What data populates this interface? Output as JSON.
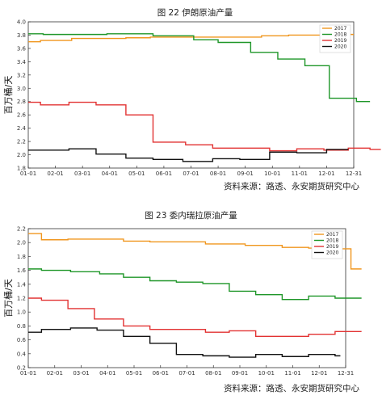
{
  "chart_data": [
    {
      "type": "line",
      "title": "图 22  伊朗原油产量",
      "ylabel": "百万桶/天",
      "source": "资料来源：路透、永安期货研究中心",
      "ylim": [
        1.8,
        4.0
      ],
      "yticks": [
        "1.8",
        "2.0",
        "2.2",
        "2.4",
        "2.6",
        "2.8",
        "3.0",
        "3.2",
        "3.4",
        "3.6",
        "3.8",
        "4.0"
      ],
      "xticks": [
        "01-01",
        "02-01",
        "03-01",
        "04-01",
        "05-01",
        "06-01",
        "07-01",
        "08-01",
        "09-01",
        "10-01",
        "11-01",
        "12-01",
        "12-31"
      ],
      "legend_position": "top-right",
      "series": [
        {
          "name": "2017",
          "color": "#f0961e",
          "points": [
            [
              0,
              3.7
            ],
            [
              0.45,
              3.7
            ],
            [
              0.45,
              3.72
            ],
            [
              1.6,
              3.72
            ],
            [
              1.6,
              3.75
            ],
            [
              3.6,
              3.75
            ],
            [
              3.6,
              3.76
            ],
            [
              4.5,
              3.76
            ],
            [
              4.5,
              3.77
            ],
            [
              8.6,
              3.77
            ],
            [
              8.6,
              3.79
            ],
            [
              9.6,
              3.79
            ],
            [
              9.6,
              3.8
            ],
            [
              11.2,
              3.8
            ],
            [
              11.2,
              3.81
            ],
            [
              12.0,
              3.81
            ]
          ]
        },
        {
          "name": "2018",
          "color": "#1e9628",
          "points": [
            [
              0,
              3.82
            ],
            [
              0.55,
              3.82
            ],
            [
              0.55,
              3.81
            ],
            [
              2.9,
              3.81
            ],
            [
              2.9,
              3.82
            ],
            [
              4.6,
              3.82
            ],
            [
              4.6,
              3.79
            ],
            [
              6.1,
              3.79
            ],
            [
              6.1,
              3.73
            ],
            [
              7.0,
              3.73
            ],
            [
              7.0,
              3.69
            ],
            [
              8.2,
              3.69
            ],
            [
              8.2,
              3.54
            ],
            [
              9.2,
              3.54
            ],
            [
              9.2,
              3.44
            ],
            [
              10.2,
              3.44
            ],
            [
              10.2,
              3.34
            ],
            [
              11.1,
              3.34
            ],
            [
              11.1,
              2.85
            ],
            [
              12.1,
              2.85
            ],
            [
              12.1,
              2.8
            ],
            [
              12.6,
              2.8
            ]
          ]
        },
        {
          "name": "2019",
          "color": "#e23232",
          "points": [
            [
              0,
              2.79
            ],
            [
              0.45,
              2.79
            ],
            [
              0.45,
              2.75
            ],
            [
              1.5,
              2.75
            ],
            [
              1.5,
              2.79
            ],
            [
              2.5,
              2.79
            ],
            [
              2.5,
              2.75
            ],
            [
              3.6,
              2.75
            ],
            [
              3.6,
              2.6
            ],
            [
              4.6,
              2.6
            ],
            [
              4.6,
              2.19
            ],
            [
              5.8,
              2.19
            ],
            [
              5.8,
              2.15
            ],
            [
              6.8,
              2.15
            ],
            [
              6.8,
              2.1
            ],
            [
              8.9,
              2.1
            ],
            [
              8.9,
              2.06
            ],
            [
              9.9,
              2.06
            ],
            [
              9.9,
              2.09
            ],
            [
              10.9,
              2.09
            ],
            [
              10.9,
              2.07
            ],
            [
              11.8,
              2.07
            ],
            [
              11.8,
              2.1
            ],
            [
              12.6,
              2.1
            ],
            [
              12.6,
              2.08
            ],
            [
              13.0,
              2.08
            ]
          ]
        },
        {
          "name": "2020",
          "color": "#111111",
          "points": [
            [
              0,
              2.07
            ],
            [
              1.5,
              2.07
            ],
            [
              1.5,
              2.09
            ],
            [
              2.5,
              2.09
            ],
            [
              2.5,
              2.01
            ],
            [
              3.6,
              2.01
            ],
            [
              3.6,
              1.95
            ],
            [
              4.6,
              1.95
            ],
            [
              4.6,
              1.93
            ],
            [
              5.7,
              1.93
            ],
            [
              5.7,
              1.9
            ],
            [
              6.8,
              1.9
            ],
            [
              6.8,
              1.94
            ],
            [
              7.8,
              1.94
            ],
            [
              7.8,
              1.93
            ],
            [
              8.9,
              1.93
            ],
            [
              8.9,
              2.04
            ],
            [
              9.9,
              2.04
            ],
            [
              9.9,
              2.03
            ],
            [
              11.0,
              2.03
            ],
            [
              11.0,
              2.08
            ],
            [
              11.8,
              2.08
            ]
          ]
        }
      ]
    },
    {
      "type": "line",
      "title": "图 23 委内瑞拉原油产量",
      "ylabel": "百万桶/天",
      "source": "资料来源：路透、永安期货研究中心",
      "ylim": [
        0.2,
        2.2
      ],
      "yticks": [
        "0.2",
        "0.4",
        "0.6",
        "0.8",
        "1.0",
        "1.2",
        "1.4",
        "1.6",
        "1.8",
        "2.0",
        "2.2"
      ],
      "xticks": [
        "01-01",
        "02-01",
        "03-01",
        "04-01",
        "05-01",
        "06-01",
        "07-01",
        "08-01",
        "09-01",
        "10-01",
        "11-01",
        "12-01",
        "12-31"
      ],
      "legend_position": "top-right",
      "series": [
        {
          "name": "2017",
          "color": "#f0961e",
          "points": [
            [
              0,
              2.13
            ],
            [
              0.5,
              2.13
            ],
            [
              0.5,
              2.04
            ],
            [
              1.5,
              2.04
            ],
            [
              1.5,
              2.05
            ],
            [
              3.6,
              2.05
            ],
            [
              3.6,
              2.02
            ],
            [
              4.6,
              2.02
            ],
            [
              4.6,
              2.01
            ],
            [
              6.7,
              2.01
            ],
            [
              6.7,
              1.98
            ],
            [
              8.2,
              1.98
            ],
            [
              8.2,
              1.96
            ],
            [
              9.6,
              1.96
            ],
            [
              9.6,
              1.93
            ],
            [
              10.6,
              1.93
            ],
            [
              10.6,
              1.92
            ],
            [
              11.6,
              1.92
            ],
            [
              11.6,
              1.91
            ],
            [
              12.2,
              1.91
            ],
            [
              12.2,
              1.62
            ],
            [
              12.6,
              1.62
            ]
          ]
        },
        {
          "name": "2018",
          "color": "#1e9628",
          "points": [
            [
              0,
              1.62
            ],
            [
              0.5,
              1.62
            ],
            [
              0.5,
              1.6
            ],
            [
              1.6,
              1.6
            ],
            [
              1.6,
              1.58
            ],
            [
              2.7,
              1.58
            ],
            [
              2.7,
              1.55
            ],
            [
              3.6,
              1.55
            ],
            [
              3.6,
              1.5
            ],
            [
              4.6,
              1.5
            ],
            [
              4.6,
              1.45
            ],
            [
              5.6,
              1.45
            ],
            [
              5.6,
              1.43
            ],
            [
              6.6,
              1.43
            ],
            [
              6.6,
              1.41
            ],
            [
              7.6,
              1.41
            ],
            [
              7.6,
              1.3
            ],
            [
              8.6,
              1.3
            ],
            [
              8.6,
              1.25
            ],
            [
              9.6,
              1.25
            ],
            [
              9.6,
              1.18
            ],
            [
              10.6,
              1.18
            ],
            [
              10.6,
              1.23
            ],
            [
              11.6,
              1.23
            ],
            [
              11.6,
              1.2
            ],
            [
              12.6,
              1.2
            ]
          ]
        },
        {
          "name": "2019",
          "color": "#e23232",
          "points": [
            [
              0,
              1.2
            ],
            [
              0.5,
              1.2
            ],
            [
              0.5,
              1.17
            ],
            [
              1.5,
              1.17
            ],
            [
              1.5,
              1.05
            ],
            [
              2.5,
              1.05
            ],
            [
              2.5,
              0.9
            ],
            [
              3.6,
              0.9
            ],
            [
              3.6,
              0.8
            ],
            [
              4.6,
              0.8
            ],
            [
              4.6,
              0.75
            ],
            [
              6.7,
              0.75
            ],
            [
              6.7,
              0.71
            ],
            [
              7.6,
              0.71
            ],
            [
              7.6,
              0.73
            ],
            [
              8.6,
              0.73
            ],
            [
              8.6,
              0.65
            ],
            [
              10.6,
              0.65
            ],
            [
              10.6,
              0.68
            ],
            [
              11.6,
              0.68
            ],
            [
              11.6,
              0.72
            ],
            [
              12.6,
              0.72
            ]
          ]
        },
        {
          "name": "2020",
          "color": "#111111",
          "points": [
            [
              0,
              0.71
            ],
            [
              0.5,
              0.71
            ],
            [
              0.5,
              0.75
            ],
            [
              1.6,
              0.75
            ],
            [
              1.6,
              0.77
            ],
            [
              2.6,
              0.77
            ],
            [
              2.6,
              0.74
            ],
            [
              3.6,
              0.74
            ],
            [
              3.6,
              0.65
            ],
            [
              4.6,
              0.65
            ],
            [
              4.6,
              0.55
            ],
            [
              5.6,
              0.55
            ],
            [
              5.6,
              0.39
            ],
            [
              6.6,
              0.39
            ],
            [
              6.6,
              0.37
            ],
            [
              7.6,
              0.37
            ],
            [
              7.6,
              0.35
            ],
            [
              8.6,
              0.35
            ],
            [
              8.6,
              0.39
            ],
            [
              9.6,
              0.39
            ],
            [
              9.6,
              0.36
            ],
            [
              10.6,
              0.36
            ],
            [
              10.6,
              0.39
            ],
            [
              11.6,
              0.39
            ],
            [
              11.6,
              0.37
            ],
            [
              11.8,
              0.37
            ]
          ]
        }
      ]
    }
  ]
}
